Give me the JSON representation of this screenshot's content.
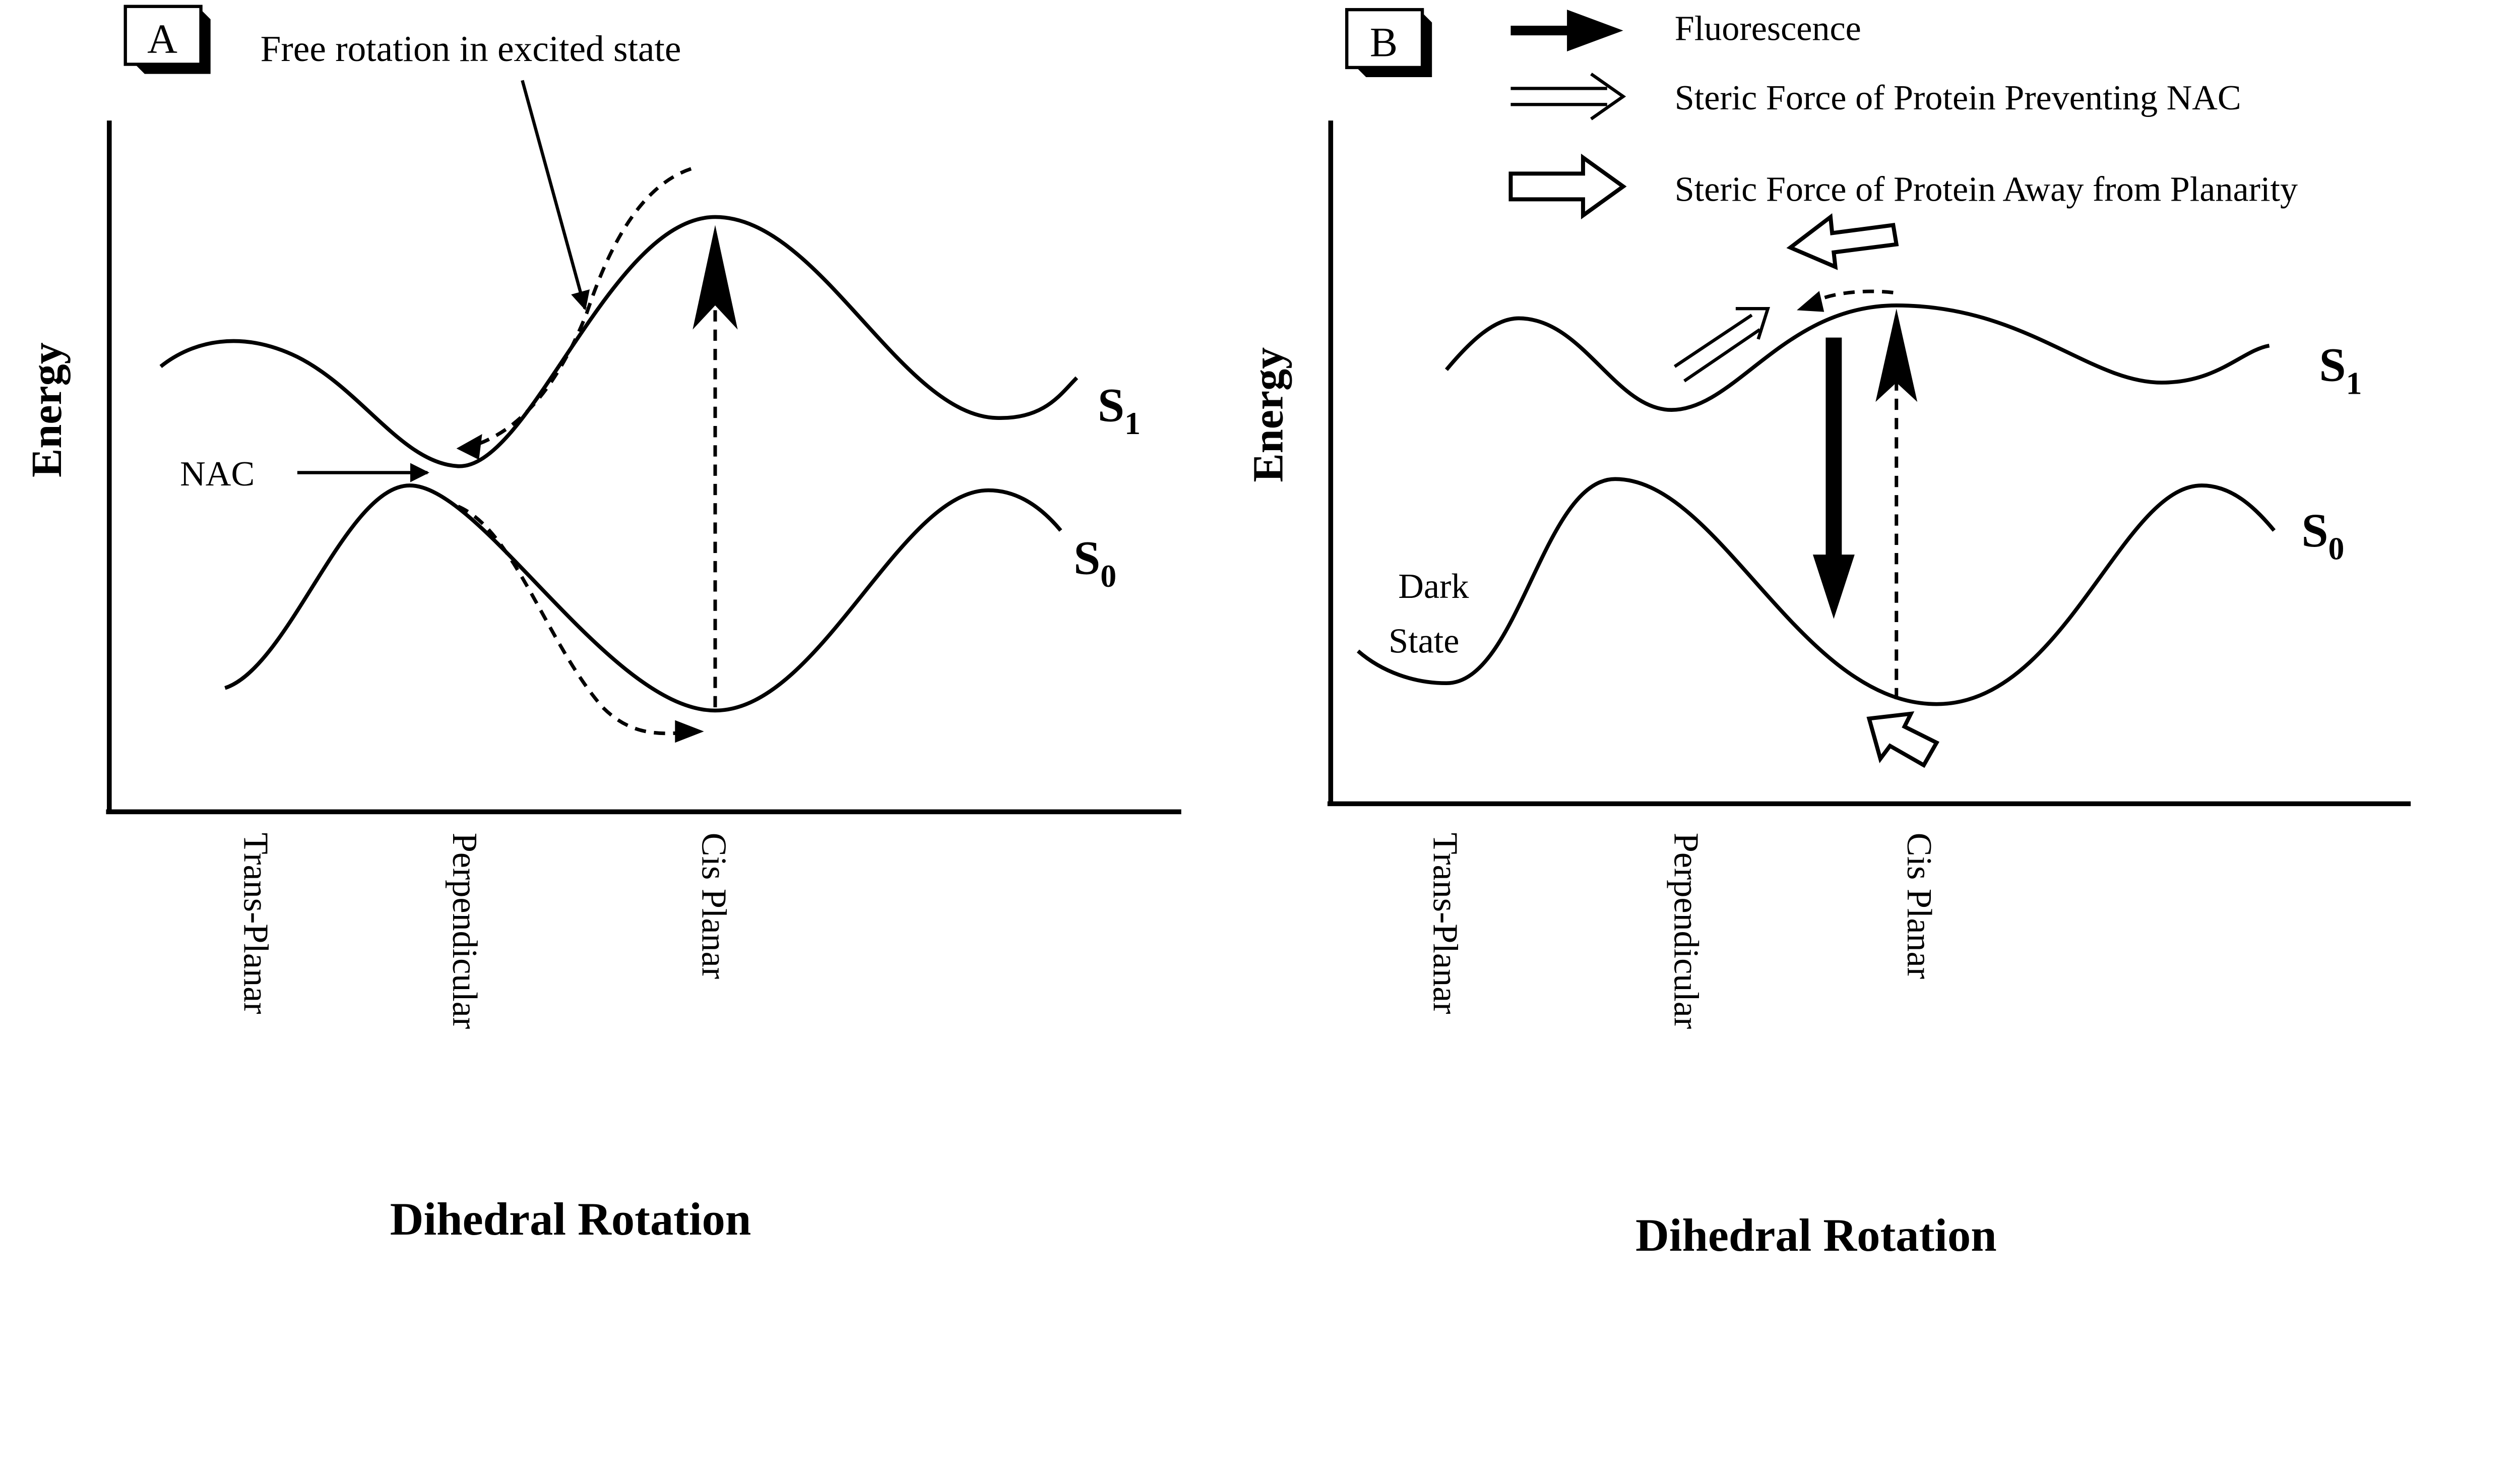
{
  "panel_a": {
    "label": "A",
    "annotation_free_rotation": "Free rotation in excited state",
    "annotation_nac": "NAC",
    "y_axis_label": "Energy",
    "x_axis_label": "Dihedral Rotation",
    "x_ticks": [
      "Trans-Planar",
      "Perpendicular",
      "Cis Planar"
    ],
    "s1_label": "S",
    "s1_sub": "1",
    "s0_label": "S",
    "s0_sub": "0"
  },
  "panel_b": {
    "label": "B",
    "legend": [
      {
        "icon": "filled-arrow",
        "label": "Fluorescence"
      },
      {
        "icon": "double-line-arrow",
        "label": "Steric Force of Protein Preventing NAC"
      },
      {
        "icon": "hollow-block-arrow",
        "label": "Steric Force of Protein Away from Planarity"
      }
    ],
    "dark_state_line1": "Dark",
    "dark_state_line2": "State",
    "y_axis_label": "Energy",
    "x_axis_label": "Dihedral Rotation",
    "x_ticks": [
      "Trans-Planar",
      "Perpendicular",
      "Cis Planar"
    ],
    "s1_label": "S",
    "s1_sub": "1",
    "s0_label": "S",
    "s0_sub": "0"
  }
}
